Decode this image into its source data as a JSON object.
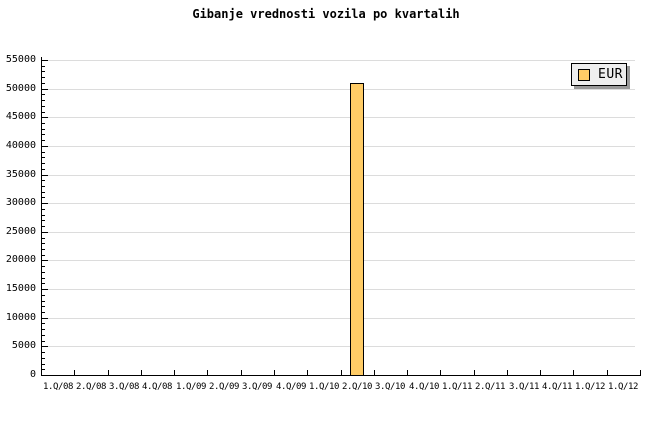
{
  "chart_data": {
    "type": "bar",
    "title": "Gibanje vrednosti vozila po kvartalih",
    "categories": [
      "1.Q/08",
      "2.Q/08",
      "3.Q/08",
      "4.Q/08",
      "1.Q/09",
      "2.Q/09",
      "3.Q/09",
      "4.Q/09",
      "1.Q/10",
      "2.Q/10",
      "3.Q/10",
      "4.Q/10",
      "1.Q/11",
      "2.Q/11",
      "3.Q/11",
      "4.Q/11",
      "1.Q/12",
      "1.Q/12"
    ],
    "series": [
      {
        "name": "EUR",
        "color": "#FFCC66",
        "values": [
          null,
          null,
          null,
          null,
          null,
          null,
          null,
          null,
          null,
          51000,
          null,
          null,
          null,
          null,
          null,
          null,
          null,
          null
        ]
      }
    ],
    "xlabel": "",
    "ylabel": "",
    "ylim": [
      0,
      55000
    ],
    "ytick_step": 5000,
    "yminor_tick_step": 1000,
    "ytick_labels": [
      "0",
      "5000",
      "10000",
      "15000",
      "20000",
      "25000",
      "30000",
      "35000",
      "40000",
      "45000",
      "50000",
      "55000"
    ],
    "grid": true,
    "legend_position": "top-right"
  },
  "legend": {
    "entries": [
      {
        "label": "EUR",
        "swatch_color": "#FFCC66"
      }
    ]
  },
  "colors": {
    "background": "#FFFFFF",
    "bar_fill": "#FFCC66",
    "bar_border": "#000000",
    "gridline": "#DCDCDC",
    "axis": "#000000",
    "text": "#000000",
    "legend_bg": "#EEEEEE",
    "legend_border": "#000000",
    "legend_shadow": "#999999"
  }
}
